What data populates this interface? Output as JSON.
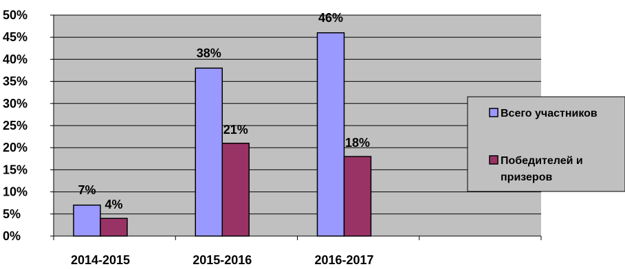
{
  "chart_data": {
    "type": "bar",
    "categories": [
      "2014-2015",
      "2015-2016",
      "2016-2017"
    ],
    "series": [
      {
        "name": "Всего участников",
        "values": [
          7,
          38,
          46
        ],
        "labels": [
          "7%",
          "38%",
          "46%"
        ],
        "color": "#9999ff"
      },
      {
        "name": "Победителей и призеров",
        "name_lines": [
          "Победителей и",
          "призеров"
        ],
        "values": [
          4,
          21,
          18
        ],
        "labels": [
          "4%",
          "21%",
          "18%"
        ],
        "color": "#993366"
      }
    ],
    "ylim": [
      0,
      50
    ],
    "yticks": [
      0,
      5,
      10,
      15,
      20,
      25,
      30,
      35,
      40,
      45,
      50
    ],
    "ytick_labels": [
      "0%",
      "5%",
      "10%",
      "15%",
      "20%",
      "25%",
      "30%",
      "35%",
      "40%",
      "45%",
      "50%"
    ],
    "plot_background": "#c0c0c0",
    "grid": true,
    "legend_position": "right"
  }
}
